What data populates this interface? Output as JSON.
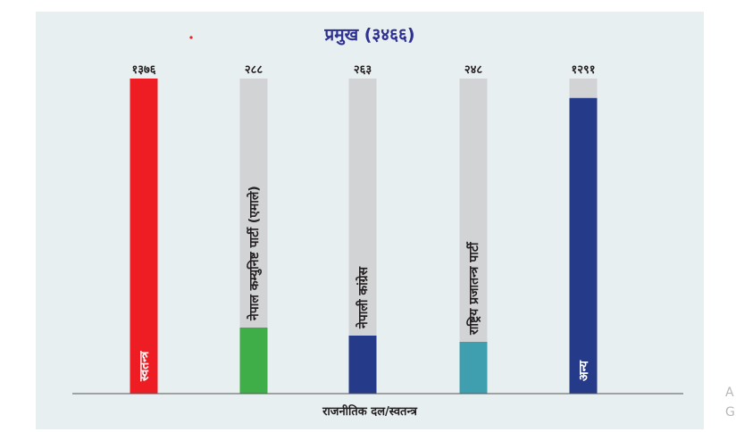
{
  "chart_data": {
    "type": "bar",
    "title": "प्रमुख (३४६६)",
    "xlabel": "राजनीतिक दल/स्वतन्त्र",
    "ylabel": "",
    "ylim": [
      0,
      1376
    ],
    "grid": false,
    "categories": [
      "स्वतन्त्र",
      "नेपाल कम्युनिष्ट पार्टी (एमाले)",
      "नेपाली कांग्रेस",
      "राष्ट्रिय प्रजातन्त्र पार्टी",
      "अन्य"
    ],
    "values": [
      1376,
      288,
      263,
      248,
      1291
    ],
    "value_labels": [
      "१३७६",
      "२८८",
      "२६३",
      "२४८",
      "१२९१"
    ],
    "colors": [
      "#ee1d24",
      "#3fae49",
      "#263a8a",
      "#3f9fae",
      "#263a8a"
    ],
    "track_color": "#d2d3d5"
  },
  "edge_text": [
    "A",
    "G"
  ]
}
